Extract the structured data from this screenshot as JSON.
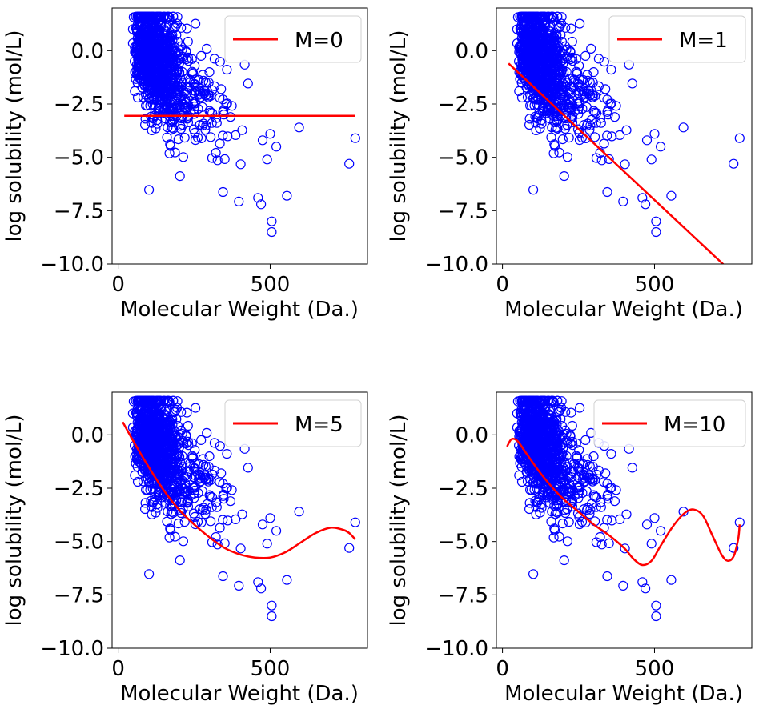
{
  "colors": {
    "points": "#0000ff",
    "fit_line": "#ff0000",
    "axes": "#000000",
    "background": "#ffffff"
  },
  "chart_data": [
    {
      "type": "scatter",
      "fit_degree": 0,
      "legend": "M=0",
      "legend_position": "top-right",
      "grid": false,
      "xlabel": "Molecular Weight (Da.)",
      "ylabel": "log solubility (mol/L)",
      "xlim": [
        -20,
        820
      ],
      "ylim": [
        -10,
        2
      ],
      "xticks": [
        0,
        500
      ],
      "yticks": [
        0.0,
        -2.5,
        -5.0,
        -7.5,
        -10.0
      ],
      "ytick_labels": [
        "0.0",
        "−2.5",
        "−5.0",
        "−7.5",
        "−10.0"
      ],
      "line_x": [
        20,
        780
      ],
      "line_y": [
        -3.05,
        -3.05
      ]
    },
    {
      "type": "scatter",
      "fit_degree": 1,
      "legend": "M=1",
      "legend_position": "top-right",
      "grid": false,
      "xlabel": "Molecular Weight (Da.)",
      "ylabel": "log solubility (mol/L)",
      "xlim": [
        -20,
        820
      ],
      "ylim": [
        -10,
        2
      ],
      "xticks": [
        0,
        500
      ],
      "yticks": [
        0.0,
        -2.5,
        -5.0,
        -7.5,
        -10.0
      ],
      "ytick_labels": [
        "0.0",
        "−2.5",
        "−5.0",
        "−7.5",
        "−10.0"
      ],
      "line_x": [
        20,
        740
      ],
      "line_y": [
        -0.6,
        -10.2
      ]
    },
    {
      "type": "scatter",
      "fit_degree": 5,
      "legend": "M=5",
      "legend_position": "top-right",
      "grid": false,
      "xlabel": "Molecular Weight (Da.)",
      "ylabel": "log solubility (mol/L)",
      "xlim": [
        -20,
        820
      ],
      "ylim": [
        -10,
        2
      ],
      "xticks": [
        0,
        500
      ],
      "yticks": [
        0.0,
        -2.5,
        -5.0,
        -7.5,
        -10.0
      ],
      "ytick_labels": [
        "0.0",
        "−2.5",
        "−5.0",
        "−7.5",
        "−10.0"
      ],
      "line_x": [
        15,
        50,
        100,
        150,
        200,
        250,
        300,
        350,
        400,
        450,
        500,
        550,
        600,
        650,
        700,
        740,
        760,
        780
      ],
      "line_y": [
        0.6,
        -0.3,
        -1.5,
        -2.6,
        -3.5,
        -4.2,
        -4.8,
        -5.3,
        -5.6,
        -5.75,
        -5.75,
        -5.5,
        -5.05,
        -4.6,
        -4.35,
        -4.45,
        -4.6,
        -4.9
      ]
    },
    {
      "type": "scatter",
      "fit_degree": 10,
      "legend": "M=10",
      "legend_position": "top-right",
      "grid": false,
      "xlabel": "Molecular Weight (Da.)",
      "ylabel": "log solubility (mol/L)",
      "xlim": [
        -20,
        820
      ],
      "ylim": [
        -10,
        2
      ],
      "xticks": [
        0,
        500
      ],
      "yticks": [
        0.0,
        -2.5,
        -5.0,
        -7.5,
        -10.0
      ],
      "ytick_labels": [
        "0.0",
        "−2.5",
        "−5.0",
        "−7.5",
        "−10.0"
      ],
      "line_x": [
        15,
        30,
        50,
        80,
        120,
        160,
        200,
        250,
        300,
        350,
        400,
        430,
        460,
        490,
        520,
        560,
        600,
        630,
        660,
        690,
        720,
        740,
        760,
        775,
        780
      ],
      "line_y": [
        -0.55,
        -0.2,
        -0.3,
        -0.9,
        -1.7,
        -2.4,
        -3.0,
        -3.6,
        -4.2,
        -4.7,
        -5.3,
        -5.8,
        -6.1,
        -5.9,
        -5.2,
        -4.3,
        -3.65,
        -3.5,
        -3.8,
        -4.7,
        -5.6,
        -5.9,
        -5.7,
        -4.9,
        -4.2
      ]
    }
  ]
}
